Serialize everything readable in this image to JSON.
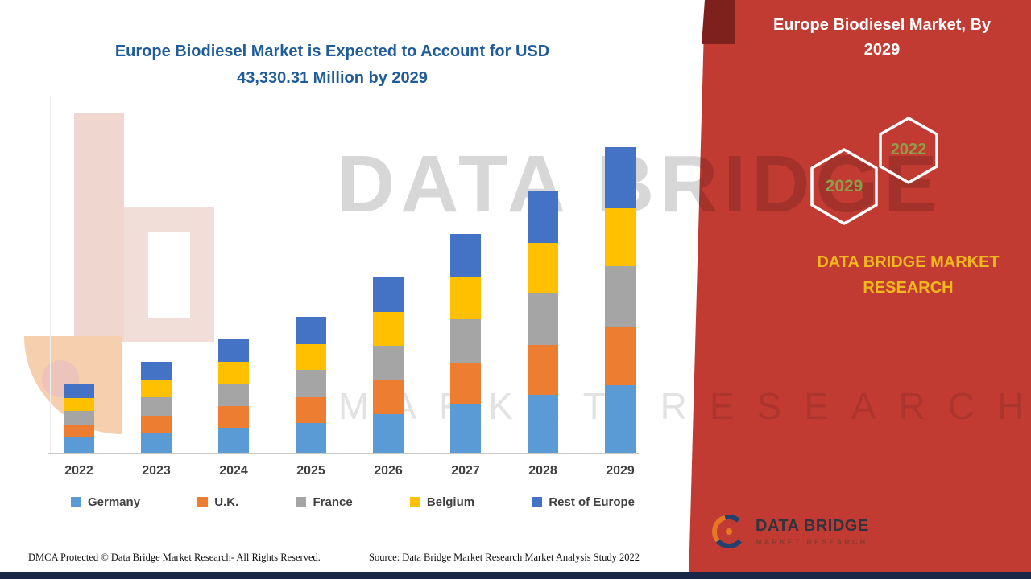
{
  "header": {
    "title_line1": "Europe Biodiesel Market is Expected to Account for USD",
    "title_line2": "43,330.31 Million by 2029"
  },
  "chart_data": {
    "type": "bar",
    "stacked": true,
    "title": "Europe Biodiesel Market is Expected to Account for USD 43,330.31 Million by 2029",
    "unit": "USD Million",
    "categories": [
      "2022",
      "2023",
      "2024",
      "2025",
      "2026",
      "2027",
      "2028",
      "2029"
    ],
    "series": [
      {
        "name": "Germany",
        "color": "#5B9BD5",
        "values": [
          2134,
          2827,
          3531,
          4246,
          5489,
          6831,
          8173,
          9532.67
        ]
      },
      {
        "name": "U.K.",
        "color": "#ED7D31",
        "values": [
          1843,
          2441,
          3049,
          3667,
          4740,
          5899,
          7058,
          8232.76
        ]
      },
      {
        "name": "France",
        "color": "#A5A5A5",
        "values": [
          1940,
          2570,
          3210,
          3860,
          4990,
          6210,
          7430,
          8666.06
        ]
      },
      {
        "name": "Belgium",
        "color": "#FFC000",
        "values": [
          1843,
          2442,
          3050,
          3667,
          4741,
          5900,
          7059,
          8232.76
        ]
      },
      {
        "name": "Rest of Europe",
        "color": "#4472C4",
        "values": [
          1940,
          2570,
          3210,
          3860,
          4990,
          6210,
          7430,
          8666.06
        ]
      }
    ],
    "totals": [
      9700,
      12850,
      16050,
      19300,
      24950,
      31050,
      37150,
      43330.31
    ],
    "ylim": [
      0,
      43330.31
    ],
    "value_axis_visible": false,
    "grid": false,
    "legend_position": "bottom"
  },
  "watermark": {
    "line1": "DATA BRIDGE",
    "line2": "MARKET RESEARCH"
  },
  "panel": {
    "title_line1": "Europe Biodiesel Market, By",
    "title_line2": "2029",
    "hexagon_left": "2029",
    "hexagon_right": "2022",
    "brand_line1": "DATA BRIDGE MARKET",
    "brand_line2": "RESEARCH",
    "bg_color": "#C23B33",
    "accent_dark": "#7E211C"
  },
  "logo": {
    "name_top": "DATA BRIDGE",
    "name_bottom": "MARKET RESEARCH"
  },
  "footer": {
    "dmca": "DMCA Protected © Data Bridge Market Research- All Rights Reserved.",
    "source": "Source: Data Bridge Market Research Market Analysis Study 2022"
  }
}
